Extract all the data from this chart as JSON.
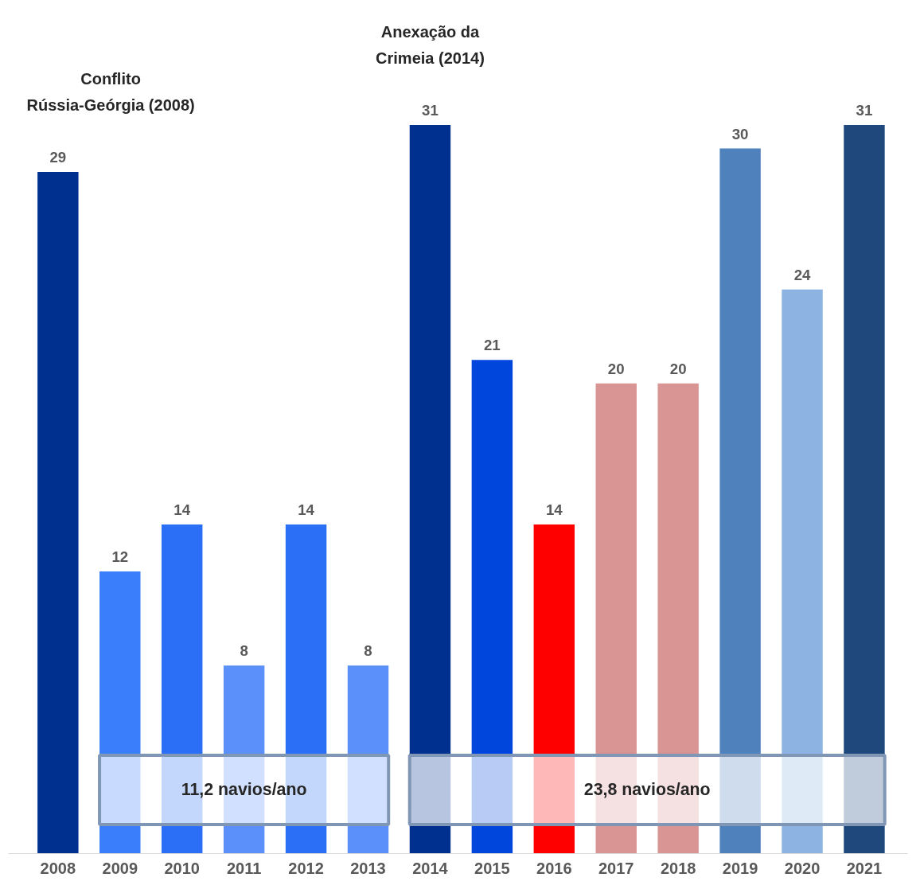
{
  "chart_data": {
    "type": "bar",
    "categories": [
      "2008",
      "2009",
      "2010",
      "2011",
      "2012",
      "2013",
      "2014",
      "2015",
      "2016",
      "2017",
      "2018",
      "2019",
      "2020",
      "2021"
    ],
    "values": [
      29,
      12,
      14,
      8,
      14,
      8,
      31,
      21,
      14,
      20,
      20,
      30,
      24,
      31
    ],
    "colors": [
      "#00308f",
      "#3a7efc",
      "#2a6ff5",
      "#5b8ff9",
      "#2a6ff5",
      "#5b8ff9",
      "#00308f",
      "#0046dc",
      "#ff0000",
      "#d99594",
      "#d99594",
      "#4f81bd",
      "#8db3e2",
      "#1f497d"
    ],
    "data_labels": true,
    "grid": false,
    "annotations": [
      "Conflito\nRússia-Geórgia (2008)",
      "Anexação da\nCrimeia (2014)"
    ],
    "bands": [
      {
        "axis": "x",
        "from": "2009",
        "to": "2013",
        "label": "11,2 navios/ano"
      },
      {
        "axis": "x",
        "from": "2014",
        "to": "2021",
        "label": "23,8 navios/ano"
      }
    ]
  }
}
